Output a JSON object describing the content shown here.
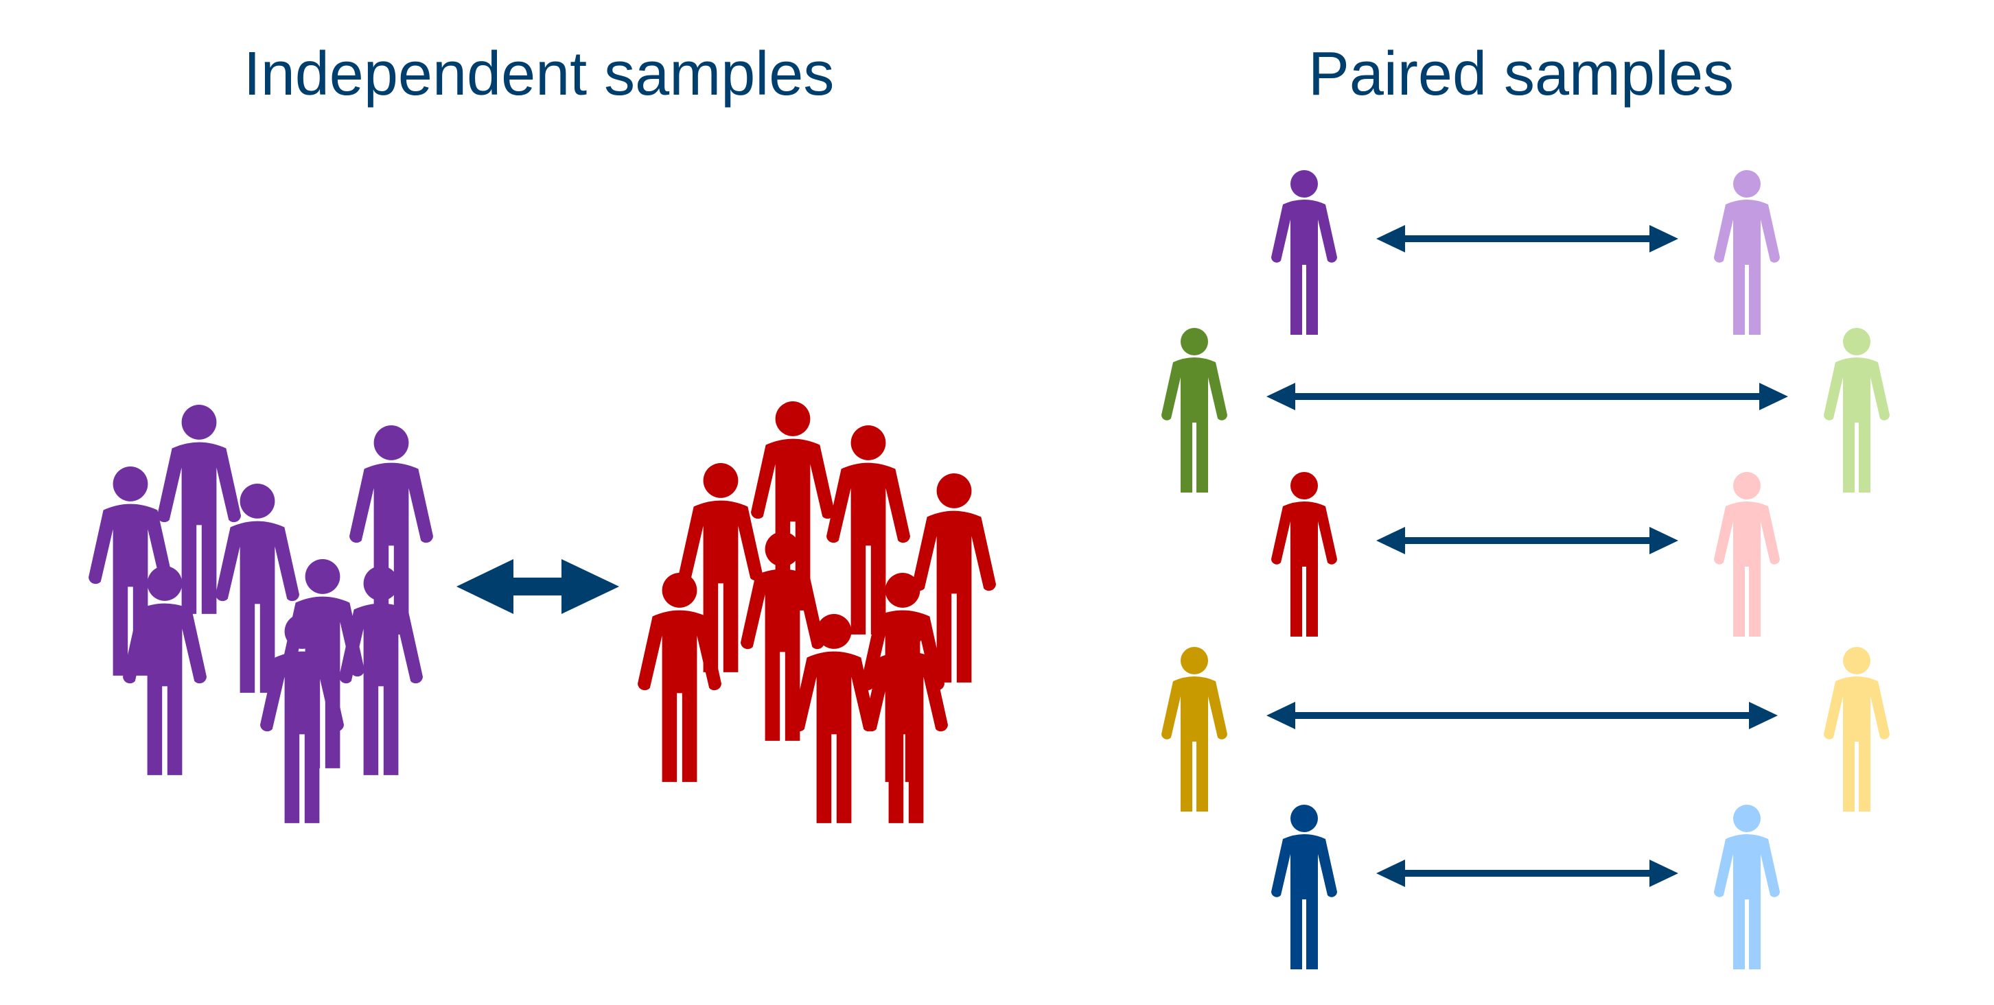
{
  "titles": {
    "independent": "Independent samples",
    "paired": "Paired samples"
  },
  "colors": {
    "title": "#003E6E",
    "arrow": "#003E6E",
    "group_a": "#7030A0",
    "group_b": "#C00000"
  },
  "independent": {
    "group_a": {
      "icon": "person-icon",
      "count": 8,
      "color": "#7030A0"
    },
    "group_b": {
      "icon": "person-icon",
      "count": 9,
      "color": "#C00000"
    },
    "arrow": "double-arrow-icon"
  },
  "paired": {
    "pairs": [
      {
        "left_color": "#7030A0",
        "right_color": "#C39BE0"
      },
      {
        "left_color": "#5F8C2A",
        "right_color": "#C5E29A"
      },
      {
        "left_color": "#C00000",
        "right_color": "#FFC7C7"
      },
      {
        "left_color": "#C99A00",
        "right_color": "#FFE08A"
      },
      {
        "left_color": "#004488",
        "right_color": "#9CCFFF"
      }
    ],
    "arrow": "double-arrow-icon"
  }
}
